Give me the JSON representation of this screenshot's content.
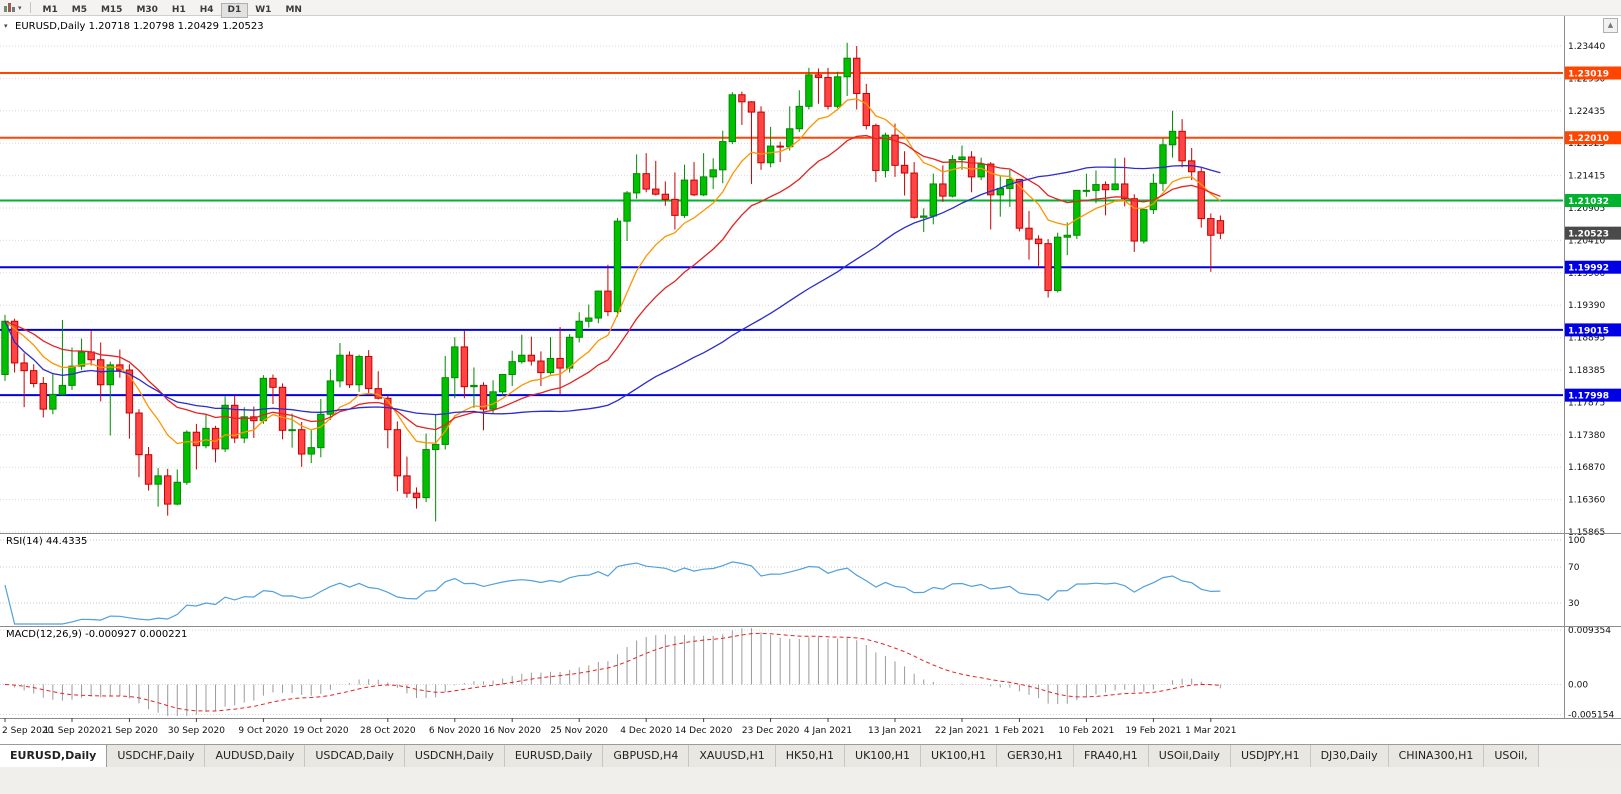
{
  "toolbar": {
    "timeframes": [
      "M1",
      "M5",
      "M15",
      "M30",
      "H1",
      "H4",
      "D1",
      "W1",
      "MN"
    ],
    "active_timeframe": "D1"
  },
  "panes": {
    "main": {
      "title": "EURUSD,Daily 1.20718 1.20798 1.20429 1.20523"
    },
    "rsi": {
      "label": "RSI(14) 44.4335",
      "axis_labels": [
        "100",
        "70",
        "30"
      ]
    },
    "macd": {
      "label": "MACD(12,26,9) -0.000927 0.000221",
      "axis_labels": [
        "0.009354",
        "0.00",
        "-0.005154"
      ]
    }
  },
  "chart_data": {
    "type": "candlestick",
    "symbol": "EURUSD",
    "timeframe": "Daily",
    "ohlc_current": {
      "open": 1.20718,
      "high": 1.20798,
      "low": 1.20429,
      "close": 1.20523
    },
    "colors": {
      "grid": "#d9d9d9",
      "up_fill": "#00c000",
      "up_stroke": "#008a00",
      "down_fill": "#ff4444",
      "down_stroke": "#c80000"
    },
    "price_axis_labels": [
      "1.23440",
      "1.22930",
      "1.22435",
      "1.21925",
      "1.21415",
      "1.20905",
      "1.20410",
      "1.19900",
      "1.19390",
      "1.18895",
      "1.18385",
      "1.17875",
      "1.17380",
      "1.16870",
      "1.16360",
      "1.15865"
    ],
    "hlines": [
      {
        "value": 1.23019,
        "label": "1.23019",
        "color": "#ff4500"
      },
      {
        "value": 1.2201,
        "label": "1.22010",
        "color": "#ff4500"
      },
      {
        "value": 1.21032,
        "label": "1.21032",
        "color": "#00b22d"
      },
      {
        "value": 1.19992,
        "label": "1.19992",
        "color": "#0000e6"
      },
      {
        "value": 1.19015,
        "label": "1.19015",
        "color": "#0000e6"
      },
      {
        "value": 1.17998,
        "label": "1.17998",
        "color": "#0000e6"
      }
    ],
    "current_price": {
      "value": 1.20523,
      "label": "1.20523",
      "color": "#4a4a4a"
    },
    "moving_averages": [
      {
        "period": 10,
        "method": "ema",
        "color": "#ff9500"
      },
      {
        "period": 21,
        "method": "ema",
        "color": "#e62222"
      },
      {
        "period": 50,
        "method": "sma",
        "color": "#2b2bd0"
      }
    ],
    "rsi": {
      "period": 14,
      "current": 44.4335,
      "levels": [
        70,
        30
      ],
      "color": "#52a0dc"
    },
    "macd": {
      "fast": 12,
      "slow": 26,
      "signal": 9,
      "macd_value": -0.000927,
      "signal_value": 0.000221,
      "histogram_color": "#9a9a9a",
      "signal_color": "#e62222",
      "scale_max": 0.009354,
      "scale_min": -0.005154
    },
    "date_labels": [
      [
        0,
        "2 Sep 2020"
      ],
      [
        7,
        "11 Sep 2020"
      ],
      [
        13,
        "21 Sep 2020"
      ],
      [
        20,
        "30 Sep 2020"
      ],
      [
        27,
        "9 Oct 2020"
      ],
      [
        33,
        "19 Oct 2020"
      ],
      [
        40,
        "28 Oct 2020"
      ],
      [
        47,
        "6 Nov 2020"
      ],
      [
        53,
        "16 Nov 2020"
      ],
      [
        60,
        "25 Nov 2020"
      ],
      [
        67,
        "4 Dec 2020"
      ],
      [
        73,
        "14 Dec 2020"
      ],
      [
        80,
        "23 Dec 2020"
      ],
      [
        86,
        "4 Jan 2021"
      ],
      [
        93,
        "13 Jan 2021"
      ],
      [
        100,
        "22 Jan 2021"
      ],
      [
        106,
        "1 Feb 2021"
      ],
      [
        113,
        "10 Feb 2021"
      ],
      [
        120,
        "19 Feb 2021"
      ],
      [
        126,
        "1 Mar 2021"
      ]
    ],
    "candles": [
      [
        1.1832,
        1.1925,
        1.1822,
        1.1915
      ],
      [
        1.1915,
        1.1919,
        1.1835,
        1.185
      ],
      [
        1.185,
        1.1865,
        1.1781,
        1.1838
      ],
      [
        1.1838,
        1.1848,
        1.1812,
        1.1818
      ],
      [
        1.1818,
        1.1828,
        1.1765,
        1.1778
      ],
      [
        1.1778,
        1.1834,
        1.177,
        1.1801
      ],
      [
        1.1801,
        1.1917,
        1.1799,
        1.1815
      ],
      [
        1.1815,
        1.1874,
        1.1808,
        1.1845
      ],
      [
        1.1845,
        1.1888,
        1.1839,
        1.1867
      ],
      [
        1.1867,
        1.1901,
        1.1846,
        1.1855
      ],
      [
        1.1855,
        1.1882,
        1.179,
        1.1816
      ],
      [
        1.1816,
        1.1852,
        1.1737,
        1.1847
      ],
      [
        1.1847,
        1.1871,
        1.1827,
        1.1839
      ],
      [
        1.1839,
        1.1848,
        1.1732,
        1.1772
      ],
      [
        1.1772,
        1.1778,
        1.1672,
        1.1707
      ],
      [
        1.1707,
        1.1719,
        1.1651,
        1.1661
      ],
      [
        1.1661,
        1.1686,
        1.1626,
        1.1674
      ],
      [
        1.1674,
        1.1685,
        1.1612,
        1.163
      ],
      [
        1.163,
        1.1684,
        1.1628,
        1.1664
      ],
      [
        1.1664,
        1.1745,
        1.166,
        1.1742
      ],
      [
        1.1742,
        1.1755,
        1.1684,
        1.1721
      ],
      [
        1.1721,
        1.1769,
        1.1717,
        1.1748
      ],
      [
        1.1748,
        1.1752,
        1.1695,
        1.1716
      ],
      [
        1.1716,
        1.1798,
        1.1711,
        1.1784
      ],
      [
        1.1784,
        1.1799,
        1.1725,
        1.1733
      ],
      [
        1.1733,
        1.1781,
        1.1725,
        1.1766
      ],
      [
        1.1766,
        1.1782,
        1.1733,
        1.176
      ],
      [
        1.176,
        1.1831,
        1.1755,
        1.1826
      ],
      [
        1.1826,
        1.1832,
        1.1786,
        1.1812
      ],
      [
        1.1812,
        1.1818,
        1.1731,
        1.1745
      ],
      [
        1.1745,
        1.1771,
        1.1718,
        1.1746
      ],
      [
        1.1746,
        1.1758,
        1.1688,
        1.1708
      ],
      [
        1.1708,
        1.1746,
        1.1694,
        1.1718
      ],
      [
        1.1718,
        1.1794,
        1.1703,
        1.177
      ],
      [
        1.177,
        1.184,
        1.1761,
        1.1822
      ],
      [
        1.1822,
        1.1881,
        1.1812,
        1.1862
      ],
      [
        1.1862,
        1.1868,
        1.1811,
        1.1816
      ],
      [
        1.1816,
        1.1863,
        1.1805,
        1.186
      ],
      [
        1.186,
        1.187,
        1.18,
        1.181
      ],
      [
        1.181,
        1.1837,
        1.1793,
        1.1795
      ],
      [
        1.1795,
        1.18,
        1.1717,
        1.1746
      ],
      [
        1.1746,
        1.1759,
        1.165,
        1.1674
      ],
      [
        1.1674,
        1.1704,
        1.164,
        1.1647
      ],
      [
        1.1647,
        1.1656,
        1.1623,
        1.164
      ],
      [
        1.164,
        1.174,
        1.1633,
        1.1715
      ],
      [
        1.1715,
        1.177,
        1.1603,
        1.1723
      ],
      [
        1.1723,
        1.1861,
        1.1715,
        1.1827
      ],
      [
        1.1827,
        1.189,
        1.1795,
        1.1875
      ],
      [
        1.1875,
        1.19,
        1.1795,
        1.1813
      ],
      [
        1.1813,
        1.1843,
        1.178,
        1.1815
      ],
      [
        1.1815,
        1.182,
        1.1745,
        1.1778
      ],
      [
        1.1778,
        1.1823,
        1.1771,
        1.1805
      ],
      [
        1.1805,
        1.1833,
        1.1799,
        1.1832
      ],
      [
        1.1832,
        1.1869,
        1.1814,
        1.1852
      ],
      [
        1.1852,
        1.1894,
        1.1849,
        1.1862
      ],
      [
        1.1862,
        1.1891,
        1.1846,
        1.1853
      ],
      [
        1.1853,
        1.1868,
        1.1814,
        1.1835
      ],
      [
        1.1835,
        1.189,
        1.1832,
        1.1857
      ],
      [
        1.1857,
        1.1906,
        1.18,
        1.1842
      ],
      [
        1.1842,
        1.1895,
        1.1835,
        1.189
      ],
      [
        1.189,
        1.1929,
        1.1882,
        1.1915
      ],
      [
        1.1915,
        1.1941,
        1.1905,
        1.192
      ],
      [
        1.192,
        1.1963,
        1.1912,
        1.1962
      ],
      [
        1.1962,
        1.2003,
        1.1923,
        1.193
      ],
      [
        1.193,
        1.2076,
        1.1922,
        1.2071
      ],
      [
        1.2071,
        1.2118,
        1.204,
        1.2115
      ],
      [
        1.2115,
        1.2175,
        1.2106,
        1.2145
      ],
      [
        1.2145,
        1.2177,
        1.2116,
        1.2121
      ],
      [
        1.2121,
        1.2165,
        1.2111,
        1.2113
      ],
      [
        1.2113,
        1.2133,
        1.2095,
        1.2105
      ],
      [
        1.2105,
        1.2147,
        1.2058,
        1.208
      ],
      [
        1.208,
        1.2159,
        1.2076,
        1.2135
      ],
      [
        1.2135,
        1.2163,
        1.211,
        1.2112
      ],
      [
        1.2112,
        1.2177,
        1.211,
        1.214
      ],
      [
        1.214,
        1.2169,
        1.2121,
        1.2151
      ],
      [
        1.2151,
        1.2212,
        1.213,
        1.2195
      ],
      [
        1.2195,
        1.2272,
        1.2191,
        1.2268
      ],
      [
        1.2268,
        1.2273,
        1.2221,
        1.2257
      ],
      [
        1.2257,
        1.2258,
        1.2129,
        1.2241
      ],
      [
        1.2241,
        1.225,
        1.2151,
        1.2162
      ],
      [
        1.2162,
        1.2218,
        1.2155,
        1.2188
      ],
      [
        1.2188,
        1.2195,
        1.2163,
        1.2187
      ],
      [
        1.2187,
        1.225,
        1.2181,
        1.2215
      ],
      [
        1.2215,
        1.2275,
        1.221,
        1.225
      ],
      [
        1.225,
        1.231,
        1.2245,
        1.2299
      ],
      [
        1.2299,
        1.2309,
        1.2254,
        1.2295
      ],
      [
        1.2295,
        1.231,
        1.2245,
        1.225
      ],
      [
        1.225,
        1.2304,
        1.2247,
        1.2296
      ],
      [
        1.2296,
        1.2349,
        1.2266,
        1.2325
      ],
      [
        1.2325,
        1.2344,
        1.2245,
        1.227
      ],
      [
        1.227,
        1.2285,
        1.2214,
        1.222
      ],
      [
        1.222,
        1.2223,
        1.2132,
        1.215
      ],
      [
        1.215,
        1.2209,
        1.2139,
        1.2205
      ],
      [
        1.2205,
        1.2223,
        1.214,
        1.2158
      ],
      [
        1.2158,
        1.218,
        1.2111,
        1.2146
      ],
      [
        1.2146,
        1.2163,
        1.2075,
        1.2077
      ],
      [
        1.2077,
        1.2091,
        1.2054,
        1.2079
      ],
      [
        1.2079,
        1.2145,
        1.2066,
        1.2129
      ],
      [
        1.2129,
        1.2158,
        1.2101,
        1.211
      ],
      [
        1.211,
        1.2174,
        1.2108,
        1.2167
      ],
      [
        1.2167,
        1.2189,
        1.2151,
        1.2171
      ],
      [
        1.2171,
        1.218,
        1.2116,
        1.214
      ],
      [
        1.214,
        1.217,
        1.2135,
        1.216
      ],
      [
        1.216,
        1.2163,
        1.2058,
        1.2112
      ],
      [
        1.2112,
        1.2142,
        1.2078,
        1.2122
      ],
      [
        1.2122,
        1.2151,
        1.2093,
        1.2136
      ],
      [
        1.2136,
        1.2137,
        1.2055,
        1.206
      ],
      [
        1.206,
        1.2087,
        1.2011,
        1.2043
      ],
      [
        1.2043,
        1.2049,
        1.1999,
        1.2036
      ],
      [
        1.2036,
        1.2043,
        1.1952,
        1.1963
      ],
      [
        1.1963,
        1.2053,
        1.196,
        1.2046
      ],
      [
        1.2046,
        1.2069,
        1.2018,
        1.2049
      ],
      [
        1.2049,
        1.2118,
        1.2043,
        1.2119
      ],
      [
        1.2119,
        1.2145,
        1.2109,
        1.2119
      ],
      [
        1.2119,
        1.215,
        1.2099,
        1.2128
      ],
      [
        1.2128,
        1.2133,
        1.208,
        1.212
      ],
      [
        1.212,
        1.2169,
        1.2119,
        1.2129
      ],
      [
        1.2129,
        1.217,
        1.2094,
        1.2106
      ],
      [
        1.2106,
        1.2113,
        1.2023,
        1.204
      ],
      [
        1.204,
        1.209,
        1.2036,
        1.2089
      ],
      [
        1.2089,
        1.2145,
        1.2082,
        1.213
      ],
      [
        1.213,
        1.22,
        1.2118,
        1.219
      ],
      [
        1.219,
        1.2243,
        1.217,
        1.2211
      ],
      [
        1.2211,
        1.223,
        1.2155,
        1.2165
      ],
      [
        1.2165,
        1.2185,
        1.2135,
        1.2148
      ],
      [
        1.2148,
        1.2155,
        1.2061,
        1.2075
      ],
      [
        1.2075,
        1.2083,
        1.1992,
        1.2049
      ],
      [
        1.20718,
        1.20798,
        1.20429,
        1.20523
      ]
    ]
  },
  "tabs": {
    "active": 0,
    "items": [
      "EURUSD,Daily",
      "USDCHF,Daily",
      "AUDUSD,Daily",
      "USDCAD,Daily",
      "USDCNH,Daily",
      "EURUSD,Daily",
      "GBPUSD,H4",
      "XAUUSD,H1",
      "HK50,H1",
      "UK100,H1",
      "UK100,H1",
      "GER30,H1",
      "FRA40,H1",
      "USOil,Daily",
      "USDJPY,H1",
      "DJ30,Daily",
      "CHINA300,H1",
      "USOil,"
    ]
  }
}
